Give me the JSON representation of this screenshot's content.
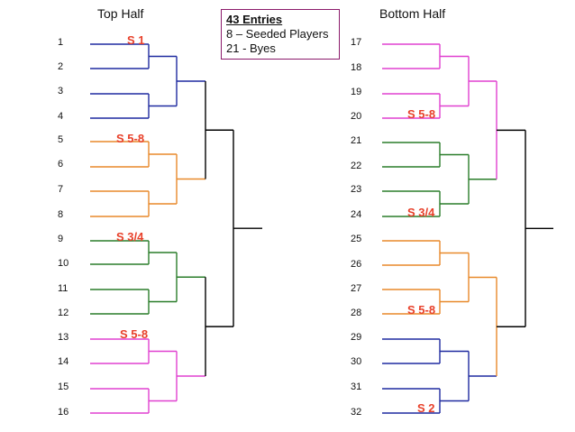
{
  "titles": {
    "top_half": "Top Half",
    "bottom_half": "Bottom Half"
  },
  "entries_box": {
    "title": "43 Entries",
    "line1": "8 – Seeded Players",
    "line2": "21 - Byes"
  },
  "colors": {
    "blue": "#1f2aa0",
    "orange": "#e8892a",
    "green": "#2a7d2a",
    "magenta": "#e040d0",
    "black": "#000000",
    "seed_text": "#e8402a"
  },
  "seeds": [
    {
      "label": "S 1"
    },
    {
      "label": "S 5-8"
    },
    {
      "label": "S 3/4"
    },
    {
      "label": "S 5-8"
    },
    {
      "label": "S 5-8"
    },
    {
      "label": "S 3/4"
    },
    {
      "label": "S 5-8"
    },
    {
      "label": "S 2"
    }
  ],
  "positions": [
    "1",
    "2",
    "3",
    "4",
    "5",
    "6",
    "7",
    "8",
    "9",
    "10",
    "11",
    "12",
    "13",
    "14",
    "15",
    "16",
    "17",
    "18",
    "19",
    "20",
    "21",
    "22",
    "23",
    "24",
    "25",
    "26",
    "27",
    "28",
    "29",
    "30",
    "31",
    "32"
  ],
  "groups": [
    {
      "color": "magenta"
    },
    {
      "color": "green"
    },
    {
      "color": "orange"
    },
    {
      "color": "blue"
    }
  ]
}
